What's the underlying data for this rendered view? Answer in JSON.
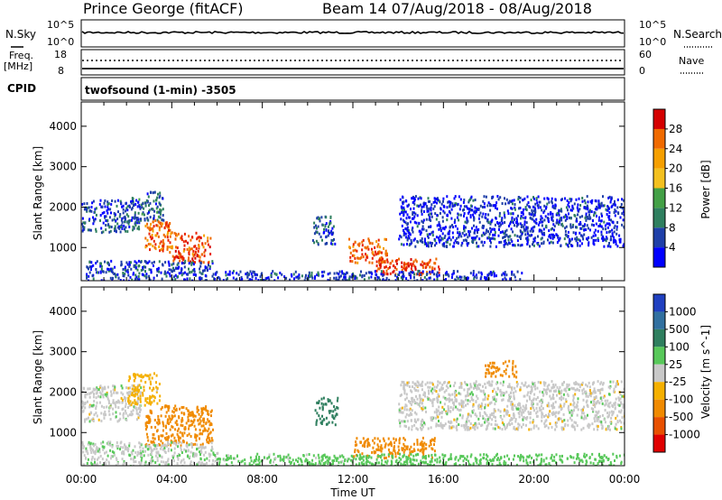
{
  "header": {
    "station": "Prince George (fitACF)",
    "beam_info": "Beam 14 07/Aug/2018 - 08/Aug/2018"
  },
  "top_panels": {
    "nsky_label": "N.Sky",
    "nsky_ticks": [
      "10^5",
      "10^0"
    ],
    "nsearch_label": "N.Search",
    "nsearch_ticks": [
      "10^5",
      "10^0"
    ],
    "freq_label": "Freq.",
    "freq_unit": "[MHz]",
    "freq_ticks": [
      "18",
      "8"
    ],
    "nave_label": "Nave",
    "nave_ticks": [
      "60",
      "0"
    ],
    "cpid_label": "CPID",
    "cpid_text": "twofsound (1-min) -3505"
  },
  "colors": {
    "power_scale": [
      "#0000ff",
      "#1f3fa8",
      "#2f7f5f",
      "#43a046",
      "#f3c01f",
      "#f59f00",
      "#f06a00",
      "#e82200",
      "#d40000"
    ],
    "velocity_scale": [
      "#2040c0",
      "#3170a0",
      "#2f7f5f",
      "#58c85a",
      "#c8c8c8",
      "#f5b000",
      "#f08a00",
      "#e85000",
      "#e00000"
    ]
  },
  "chart_data": [
    {
      "type": "heatmap",
      "title": "",
      "xlabel": "",
      "ylabel": "Slant Range [km]",
      "xlim": [
        "00:00",
        "00:00"
      ],
      "ylim": [
        180,
        4600
      ],
      "x_ticks": [
        "00:00",
        "04:00",
        "08:00",
        "12:00",
        "16:00",
        "20:00",
        "00:00"
      ],
      "y_ticks": [
        1000,
        2000,
        3000,
        4000
      ],
      "colorbar": {
        "label": "Power [dB]",
        "ticks": [
          4,
          8,
          12,
          16,
          20,
          24,
          28
        ]
      },
      "patches": [
        {
          "t": [
            0.0,
            2.6
          ],
          "r": [
            1400,
            2200
          ],
          "value": 6
        },
        {
          "t": [
            2.2,
            3.6
          ],
          "r": [
            1700,
            2400
          ],
          "value": 8
        },
        {
          "t": [
            2.8,
            4.0
          ],
          "r": [
            900,
            1700
          ],
          "value": 26
        },
        {
          "t": [
            4.0,
            5.7
          ],
          "r": [
            650,
            1400
          ],
          "value": 28
        },
        {
          "t": [
            0.2,
            5.8
          ],
          "r": [
            200,
            700
          ],
          "value": 5
        },
        {
          "t": [
            5.8,
            12.0
          ],
          "r": [
            200,
            450
          ],
          "value": 5
        },
        {
          "t": [
            10.2,
            11.2
          ],
          "r": [
            1100,
            1800
          ],
          "value": 7
        },
        {
          "t": [
            11.8,
            13.5
          ],
          "r": [
            650,
            1250
          ],
          "value": 27
        },
        {
          "t": [
            13.0,
            15.8
          ],
          "r": [
            350,
            750
          ],
          "value": 29
        },
        {
          "t": [
            11.2,
            19.5
          ],
          "r": [
            200,
            450
          ],
          "value": 5
        },
        {
          "t": [
            14.0,
            24.0
          ],
          "r": [
            1050,
            2300
          ],
          "value": 4
        }
      ]
    },
    {
      "type": "heatmap",
      "title": "",
      "xlabel": "Time UT",
      "ylabel": "Slant Range [km]",
      "xlim": [
        "00:00",
        "00:00"
      ],
      "ylim": [
        180,
        4600
      ],
      "x_ticks": [
        "00:00",
        "04:00",
        "08:00",
        "12:00",
        "16:00",
        "20:00",
        "00:00"
      ],
      "y_ticks": [
        1000,
        2000,
        3000,
        4000
      ],
      "colorbar": {
        "label": "Velocity [m s^-1]",
        "ticks": [
          "1000",
          "500",
          "100",
          "25",
          "-25",
          "-100",
          "-500",
          "-1000"
        ]
      },
      "patches": [
        {
          "t": [
            0.0,
            2.6
          ],
          "r": [
            1300,
            2200
          ],
          "value": 0
        },
        {
          "t": [
            2.0,
            3.5
          ],
          "r": [
            1700,
            2500
          ],
          "value": -50
        },
        {
          "t": [
            2.8,
            5.8
          ],
          "r": [
            700,
            1700
          ],
          "value": -200
        },
        {
          "t": [
            0.0,
            6.0
          ],
          "r": [
            200,
            800
          ],
          "value": 10
        },
        {
          "t": [
            6.0,
            12.0
          ],
          "r": [
            200,
            500
          ],
          "value": 50
        },
        {
          "t": [
            10.3,
            11.3
          ],
          "r": [
            1200,
            1900
          ],
          "value": 300
        },
        {
          "t": [
            12.0,
            15.6
          ],
          "r": [
            400,
            900
          ],
          "value": -150
        },
        {
          "t": [
            12.0,
            24.0
          ],
          "r": [
            200,
            500
          ],
          "value": 60
        },
        {
          "t": [
            14.0,
            24.0
          ],
          "r": [
            1100,
            2300
          ],
          "value": 0
        },
        {
          "t": [
            17.8,
            19.2
          ],
          "r": [
            2400,
            2800
          ],
          "value": -200
        }
      ]
    }
  ]
}
